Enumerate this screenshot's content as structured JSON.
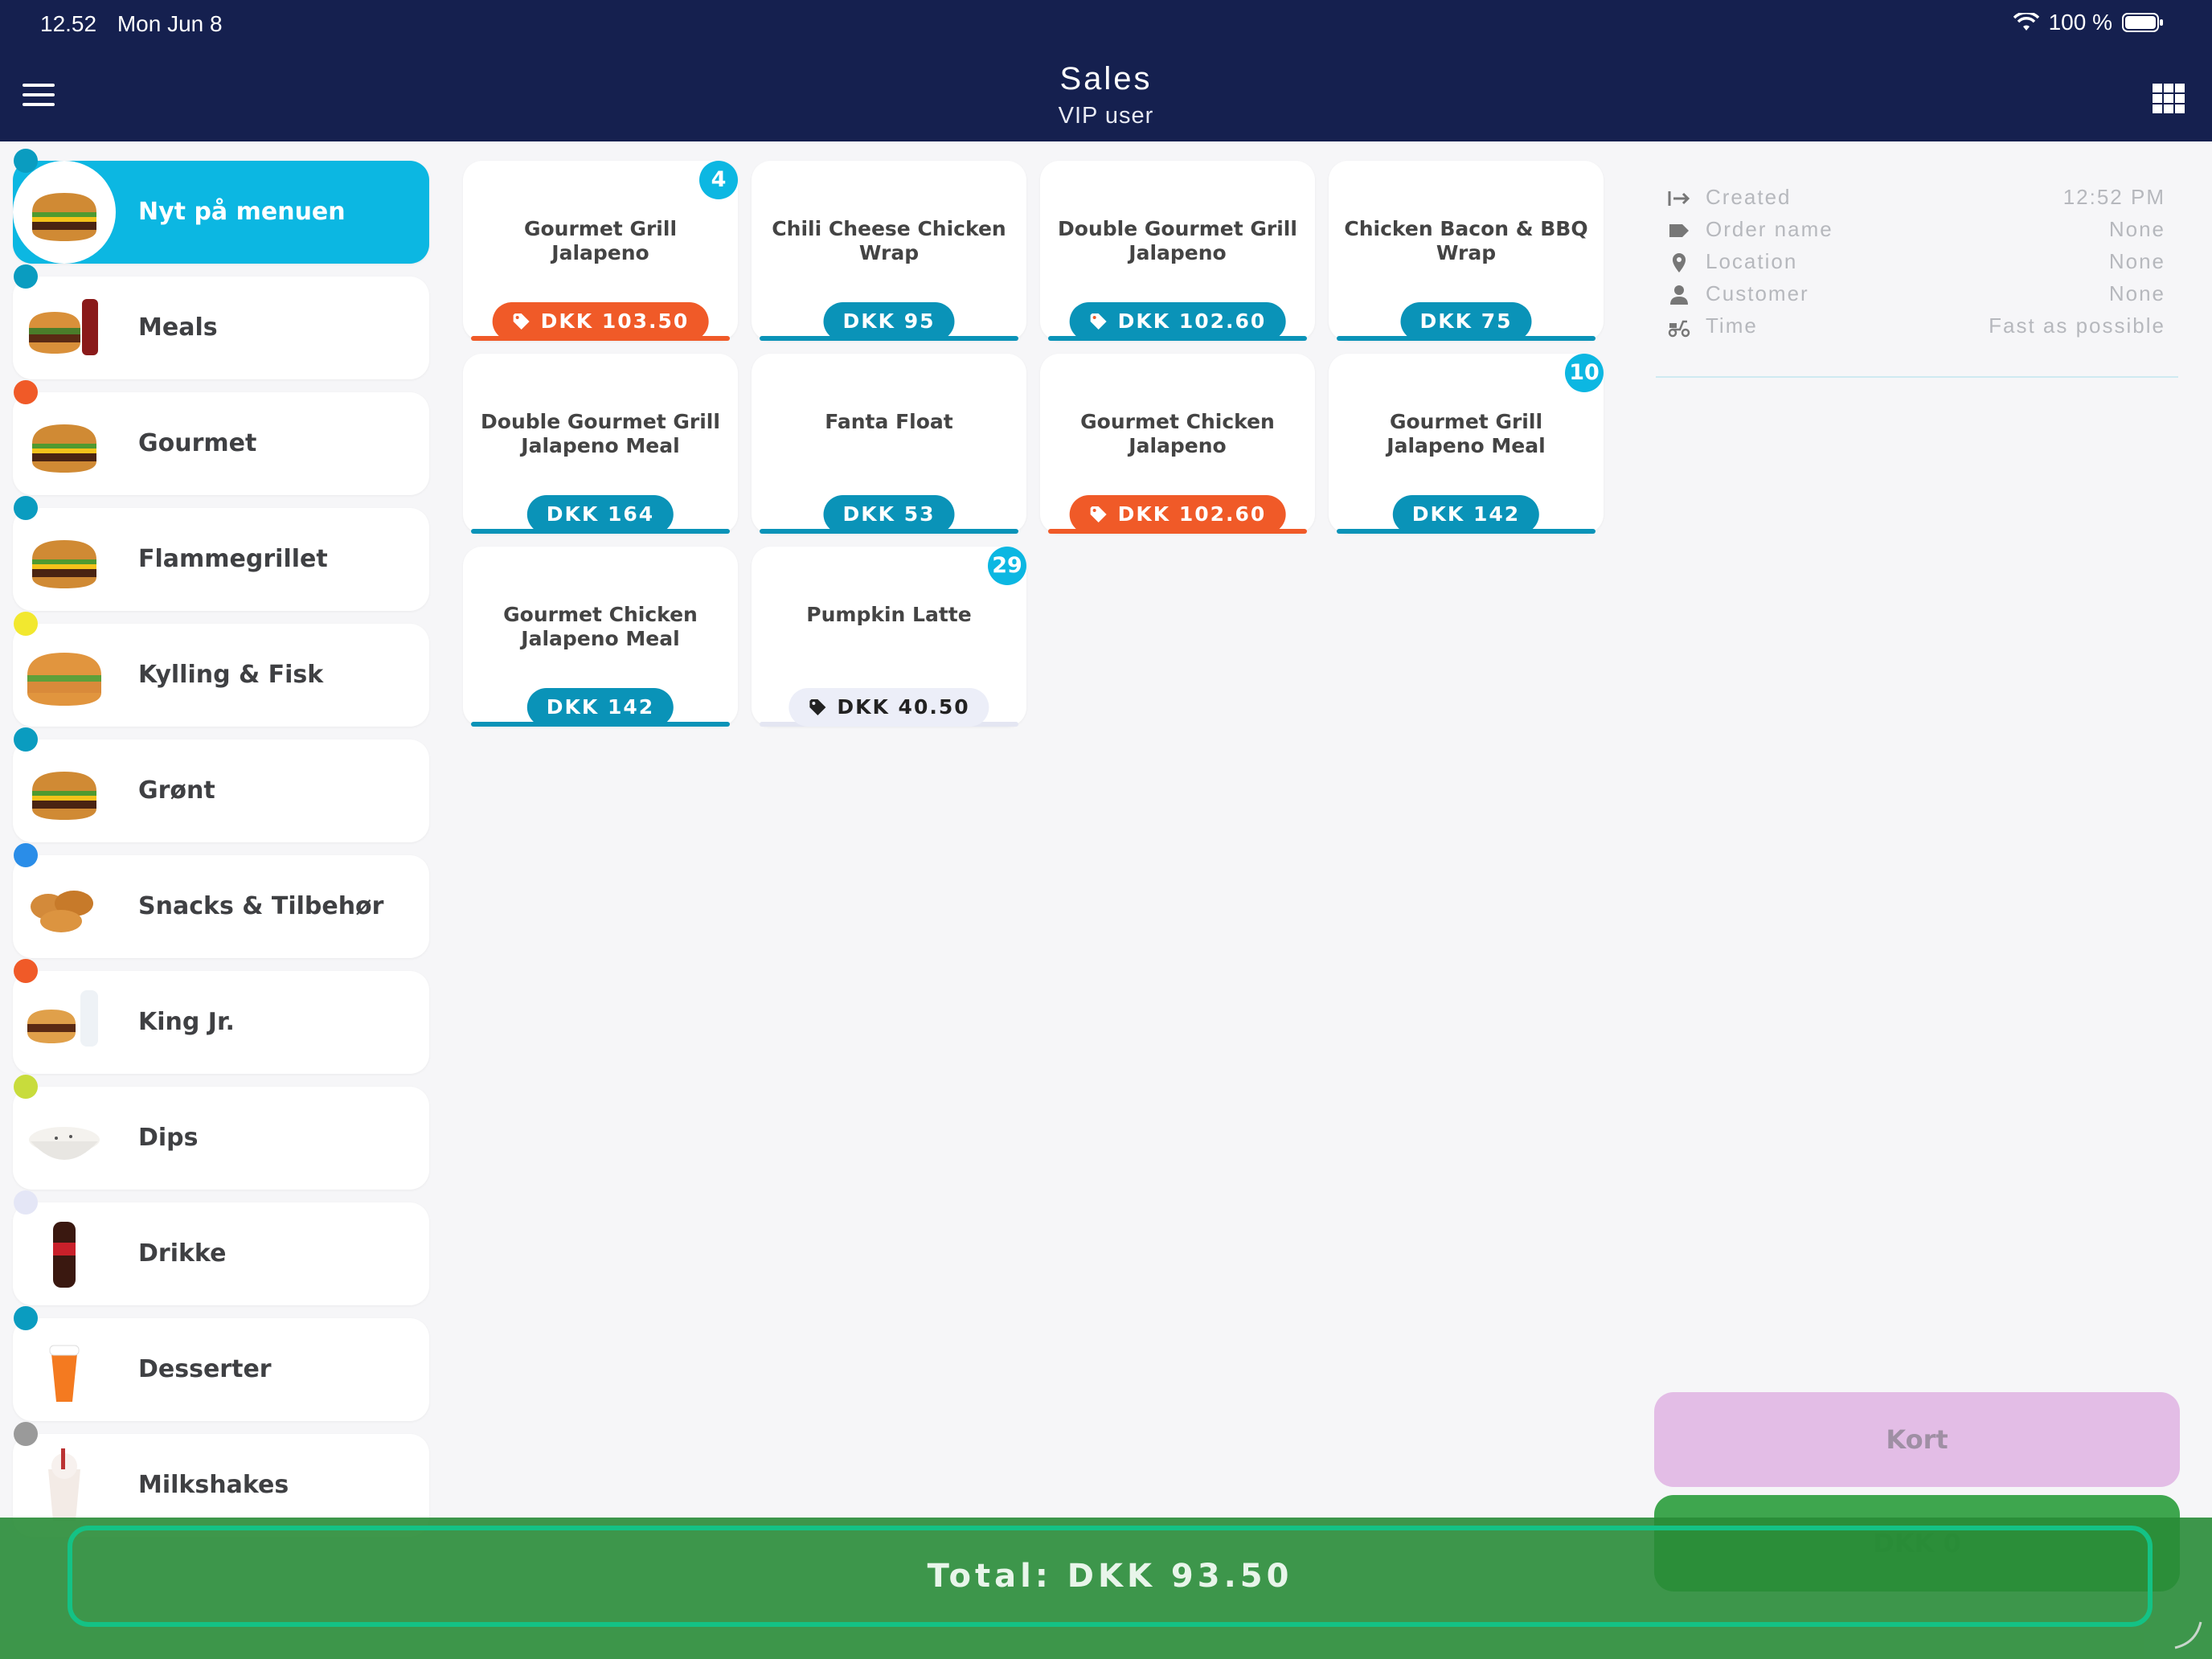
{
  "status_bar": {
    "time": "12.52",
    "date": "Mon Jun 8",
    "battery": "100 %"
  },
  "header": {
    "title": "Sales",
    "subtitle": "VIP user"
  },
  "categories": [
    {
      "label": "Nyt på menuen",
      "dot_color": "#0a9cc0",
      "active": true,
      "icon": "burger-icon"
    },
    {
      "label": "Meals",
      "dot_color": "#0a9cc0",
      "active": false,
      "icon": "meal-icon"
    },
    {
      "label": "Gourmet",
      "dot_color": "#f05a28",
      "active": false,
      "icon": "burger-icon"
    },
    {
      "label": "Flammegrillet",
      "dot_color": "#0a9cc0",
      "active": false,
      "icon": "burger-icon"
    },
    {
      "label": "Kylling & Fisk",
      "dot_color": "#f2e82f",
      "active": false,
      "icon": "chicken-burger-icon"
    },
    {
      "label": "Grønt",
      "dot_color": "#0a9cc0",
      "active": false,
      "icon": "burger-icon"
    },
    {
      "label": "Snacks & Tilbehør",
      "dot_color": "#2a8de8",
      "active": false,
      "icon": "nuggets-icon"
    },
    {
      "label": "King Jr.",
      "dot_color": "#f05a28",
      "active": false,
      "icon": "kids-meal-icon"
    },
    {
      "label": "Dips",
      "dot_color": "#c8dc3c",
      "active": false,
      "icon": "dip-bowl-icon"
    },
    {
      "label": "Drikke",
      "dot_color": "#e4e6f6",
      "active": false,
      "icon": "soda-icon"
    },
    {
      "label": "Desserter",
      "dot_color": "#0a9cc0",
      "active": false,
      "icon": "dessert-icon"
    },
    {
      "label": "Milkshakes",
      "dot_color": "#9a9a9a",
      "active": false,
      "icon": "milkshake-icon"
    }
  ],
  "products": [
    {
      "name": "Gourmet Grill Jalapeno",
      "price": "DKK 103.50",
      "style": "discount",
      "badge": "4"
    },
    {
      "name": "Chili Cheese Chicken Wrap",
      "price": "DKK 95",
      "style": "normal",
      "badge": ""
    },
    {
      "name": "Double Gourmet Grill Jalapeno",
      "price": "DKK 102.60",
      "style": "tagged",
      "badge": ""
    },
    {
      "name": "Chicken Bacon & BBQ Wrap",
      "price": "DKK 75",
      "style": "normal",
      "badge": ""
    },
    {
      "name": "Double Gourmet Grill Jalapeno Meal",
      "price": "DKK 164",
      "style": "normal",
      "badge": ""
    },
    {
      "name": "Fanta Float",
      "price": "DKK 53",
      "style": "normal",
      "badge": ""
    },
    {
      "name": "Gourmet Chicken Jalapeno",
      "price": "DKK 102.60",
      "style": "discount",
      "badge": ""
    },
    {
      "name": "Gourmet Grill Jalapeno Meal",
      "price": "DKK 142",
      "style": "normal",
      "badge": "10"
    },
    {
      "name": "Gourmet Chicken Jalapeno Meal",
      "price": "DKK 142",
      "style": "normal",
      "badge": ""
    },
    {
      "name": "Pumpkin Latte",
      "price": "DKK 40.50",
      "style": "light",
      "badge": "29"
    }
  ],
  "order_info": [
    {
      "label": "Created",
      "value": "12:52 PM",
      "icon": "enter-arrow-icon"
    },
    {
      "label": "Order name",
      "value": "None",
      "icon": "tag-icon"
    },
    {
      "label": "Location",
      "value": "None",
      "icon": "location-pin-icon"
    },
    {
      "label": "Customer",
      "value": "None",
      "icon": "person-icon"
    },
    {
      "label": "Time",
      "value": "Fast as possible",
      "icon": "scooter-icon"
    }
  ],
  "buttons": {
    "kort": "Kort",
    "cash": "DKK 0"
  },
  "total": {
    "label": "Total: DKK 93.50"
  },
  "colors": {
    "header_bg": "#15204f",
    "accent": "#0cb7e2",
    "price_blue": "#0a93b8",
    "discount": "#f05a28",
    "total_bg": "#3a963f",
    "total_border": "#14c285"
  }
}
